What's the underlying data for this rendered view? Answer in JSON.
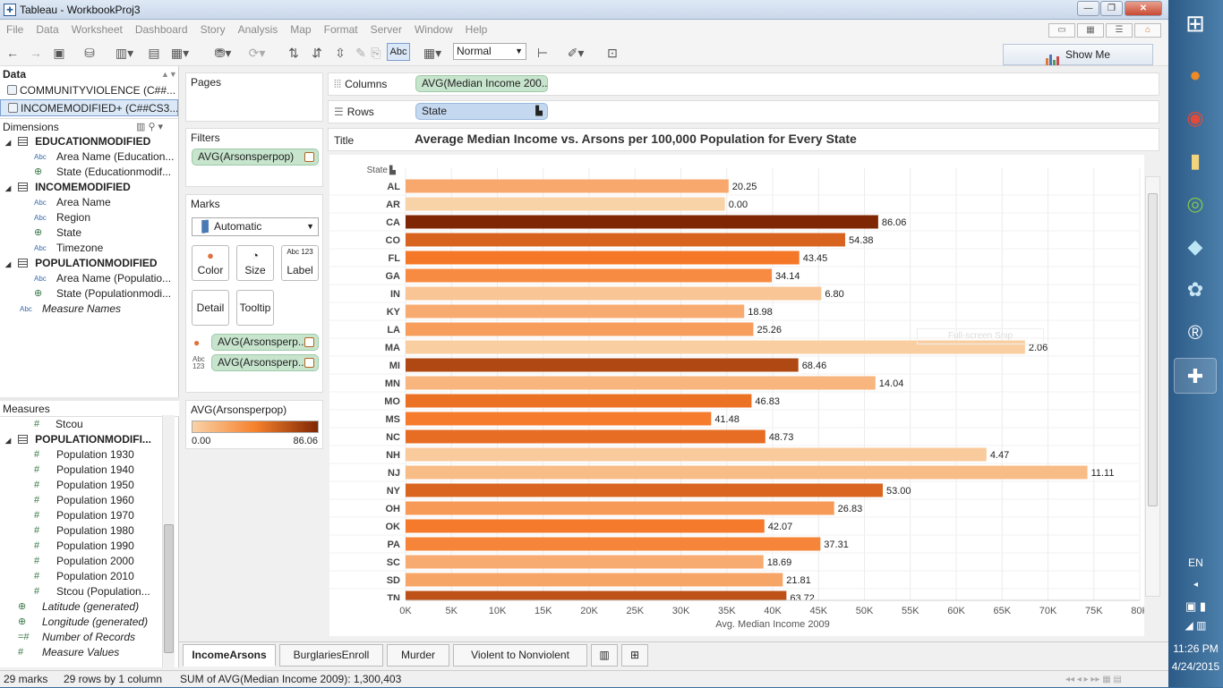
{
  "window": {
    "title": "Tableau - WorkbookProj3"
  },
  "menu": [
    "File",
    "Data",
    "Worksheet",
    "Dashboard",
    "Story",
    "Analysis",
    "Map",
    "Format",
    "Server",
    "Window",
    "Help"
  ],
  "toolbar": {
    "fit_value": "Normal",
    "abc_label": "Abc",
    "show_me_label": "Show Me"
  },
  "data_pane": {
    "header": "Data",
    "datasources": [
      "COMMUNITYVIOLENCE (C##...",
      "INCOMEMODIFIED+ (C##CS3..."
    ],
    "dimensions_header": "Dimensions",
    "dimension_groups": [
      {
        "name": "EDUCATIONMODIFIED",
        "fields": [
          {
            "type": "Abc",
            "name": "Area Name (Education..."
          },
          {
            "type": "globe",
            "name": "State (Educationmodif..."
          }
        ]
      },
      {
        "name": "INCOMEMODIFIED",
        "fields": [
          {
            "type": "Abc",
            "name": "Area Name"
          },
          {
            "type": "Abc",
            "name": "Region"
          },
          {
            "type": "globe",
            "name": "State"
          },
          {
            "type": "Abc",
            "name": "Timezone"
          }
        ]
      },
      {
        "name": "POPULATIONMODIFIED",
        "fields": [
          {
            "type": "Abc",
            "name": "Area Name (Populatio..."
          },
          {
            "type": "globe",
            "name": "State (Populationmodi..."
          }
        ]
      }
    ],
    "dim_extra": {
      "type": "Abc",
      "name": "Measure Names"
    },
    "measures_header": "Measures",
    "measures_top": {
      "type": "#",
      "name": "Stcou"
    },
    "measure_group": "POPULATIONMODIFI...",
    "measure_fields": [
      "Population 1930",
      "Population 1940",
      "Population 1950",
      "Population 1960",
      "Population 1970",
      "Population 1980",
      "Population 1990",
      "Population 2000",
      "Population 2010",
      "Stcou (Population..."
    ],
    "measure_extra": [
      {
        "type": "globe",
        "name": "Latitude (generated)"
      },
      {
        "type": "globe",
        "name": "Longitude (generated)"
      },
      {
        "type": "=#",
        "name": "Number of Records"
      },
      {
        "type": "#",
        "name": "Measure Values"
      }
    ]
  },
  "pages_card": {
    "label": "Pages"
  },
  "filters_card": {
    "label": "Filters",
    "pill": "AVG(Arsonsperpop)"
  },
  "marks_card": {
    "label": "Marks",
    "mark_type": "Automatic",
    "buttons": [
      "Color",
      "Size",
      "Label",
      "Detail",
      "Tooltip"
    ],
    "label_icon_text": "Abc 123",
    "pills": [
      "AVG(Arsonsperp..",
      "AVG(Arsonsperp.."
    ],
    "pill2_icon": "Abc 123"
  },
  "legend": {
    "title": "AVG(Arsonsperpop)",
    "min": "0.00",
    "max": "86.06",
    "low_color": "#f9d3a8",
    "high_color": "#7f2704"
  },
  "shelves": {
    "columns_label": "Columns",
    "columns_pill": "AVG(Median Income 200..",
    "rows_label": "Rows",
    "rows_pill": "State",
    "title_label": "Title",
    "title": "Average Median Income vs. Arsons per 100,000 Population for Every State"
  },
  "snip_overlay": "Full-screen Snip",
  "chart_data": {
    "type": "bar",
    "orientation": "horizontal",
    "row_header": "State",
    "xlabel": "Avg. Median Income 2009",
    "xlim": [
      0,
      80000
    ],
    "x_ticks": [
      0,
      5000,
      10000,
      15000,
      20000,
      25000,
      30000,
      35000,
      40000,
      45000,
      50000,
      55000,
      60000,
      65000,
      70000,
      75000,
      80000
    ],
    "x_tick_labels": [
      "0K",
      "5K",
      "10K",
      "15K",
      "20K",
      "25K",
      "30K",
      "35K",
      "40K",
      "45K",
      "50K",
      "55K",
      "60K",
      "65K",
      "70K",
      "75K",
      "80K"
    ],
    "color_by": "AVG(Arsonsperpop)",
    "color_range": [
      0,
      86.06
    ],
    "gridlines": true,
    "categories": [
      "AL",
      "AR",
      "CA",
      "CO",
      "FL",
      "GA",
      "IN",
      "KY",
      "LA",
      "MA",
      "MI",
      "MN",
      "MO",
      "MS",
      "NC",
      "NH",
      "NJ",
      "NY",
      "OH",
      "OK",
      "PA",
      "SC",
      "SD",
      "TN"
    ],
    "values": [
      35200,
      34800,
      51500,
      47900,
      42900,
      39900,
      45300,
      36900,
      37900,
      67500,
      42800,
      51200,
      37700,
      33300,
      39200,
      63300,
      74300,
      52000,
      46700,
      39100,
      45200,
      39000,
      41100,
      41500
    ],
    "labels": [
      "20.25",
      "0.00",
      "86.06",
      "54.38",
      "43.45",
      "34.14",
      "6.80",
      "18.98",
      "25.26",
      "2.06",
      "68.46",
      "14.04",
      "46.83",
      "41.48",
      "48.73",
      "4.47",
      "11.11",
      "53.00",
      "26.83",
      "42.07",
      "37.31",
      "18.69",
      "21.81",
      "63.72"
    ],
    "color_values": [
      20.25,
      0.0,
      86.06,
      54.38,
      43.45,
      34.14,
      6.8,
      18.98,
      25.26,
      2.06,
      68.46,
      14.04,
      46.83,
      41.48,
      48.73,
      4.47,
      11.11,
      53.0,
      26.83,
      42.07,
      37.31,
      18.69,
      21.81,
      63.72
    ]
  },
  "tabs": [
    "IncomeArsons",
    "BurglariesEnroll",
    "Murder",
    "Violent to Nonviolent"
  ],
  "status": {
    "marks": "29 marks",
    "rows": "29 rows by 1 column",
    "sum": "SUM of AVG(Median Income 2009): 1,300,403"
  },
  "taskbar": {
    "lang": "EN",
    "time": "11:26 PM",
    "date": "4/24/2015"
  }
}
